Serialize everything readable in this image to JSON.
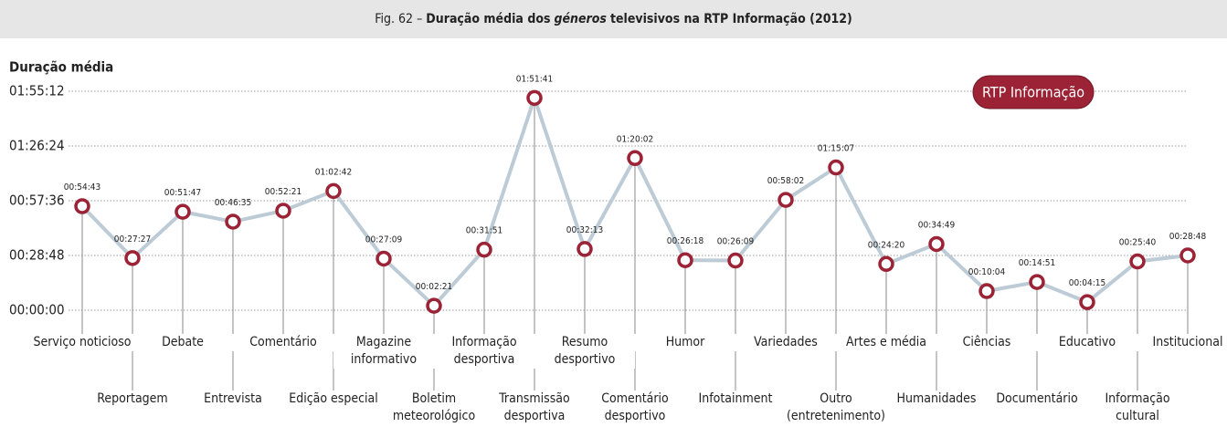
{
  "chart_data": {
    "type": "line",
    "figure_label": "Fig. 62 –",
    "title": [
      "Duração média dos",
      "géneros",
      "televisivos na RTP Informação (2012)"
    ],
    "y_axis_label": "Duração média",
    "categories": [
      "Serviço noticioso",
      "Reportagem",
      "Debate",
      "Entrevista",
      "Comentário",
      "Edição especial",
      "Magazine informativo",
      "Boletim meteorológico",
      "Informação desportiva",
      "Transmissão desportiva",
      "Resumo desportivo",
      "Comentário desportivo",
      "Humor",
      "Infotainment",
      "Variedades",
      "Outro (entretenimento)",
      "Artes e média",
      "Humanidades",
      "Ciências",
      "Documentário",
      "Educativo",
      "Informação cultural",
      "Institucional"
    ],
    "series": [
      {
        "name": "RTP Informação",
        "color": "#9b2335",
        "line_color": "#bccbd6",
        "values": [
          3283,
          1647,
          3107,
          2795,
          3141,
          3762,
          1629,
          141,
          1911,
          6701,
          1933,
          4802,
          1578,
          1569,
          3482,
          4507,
          1460,
          2089,
          604,
          891,
          255,
          1540,
          1728
        ],
        "value_labels": [
          "00:54:43",
          "00:27:27",
          "00:51:47",
          "00:46:35",
          "00:52:21",
          "01:02:42",
          "00:27:09",
          "00:02:21",
          "00:31:51",
          "01:51:41",
          "00:32:13",
          "01:20:02",
          "00:26:18",
          "00:26:09",
          "00:58:02",
          "01:15:07",
          "00:24:20",
          "00:34:49",
          "00:10:04",
          "00:14:51",
          "00:04:15",
          "00:25:40",
          "00:28:48"
        ]
      }
    ],
    "ylim": [
      0,
      6912
    ],
    "yticks": [
      {
        "value": 0,
        "label": "00:00:00"
      },
      {
        "value": 1728,
        "label": "00:28:48"
      },
      {
        "value": 3456,
        "label": "00:57:36"
      },
      {
        "value": 5184,
        "label": "01:26:24"
      },
      {
        "value": 6912,
        "label": "01:55:12"
      }
    ],
    "grid": true
  }
}
